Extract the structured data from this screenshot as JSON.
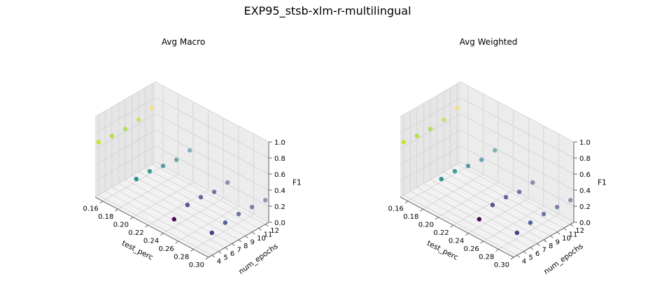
{
  "figure": {
    "suptitle": "EXP95_stsb-xlm-r-multilingual"
  },
  "chart_data": [
    {
      "type": "scatter3d",
      "title": "Avg Macro",
      "xlabel": "test_perc",
      "ylabel": "num_epochs",
      "zlabel": "F1",
      "xlim": [
        0.15,
        0.3
      ],
      "ylim": [
        3.5,
        12.5
      ],
      "zlim": [
        0.0,
        1.0
      ],
      "xticks": [
        "0.16",
        "0.18",
        "0.20",
        "0.22",
        "0.24",
        "0.26",
        "0.28",
        "0.30"
      ],
      "yticks": [
        "4",
        "5",
        "6",
        "7",
        "8",
        "9",
        "10",
        "11",
        "12"
      ],
      "zticks": [
        "0.0",
        "0.2",
        "0.4",
        "0.6",
        "0.8",
        "1.0"
      ],
      "grid": true,
      "colormap": "viridis",
      "points": [
        {
          "x": 0.15,
          "y": 4,
          "z": 0.66
        },
        {
          "x": 0.15,
          "y": 6,
          "z": 0.64
        },
        {
          "x": 0.15,
          "y": 8,
          "z": 0.63
        },
        {
          "x": 0.15,
          "y": 10,
          "z": 0.65
        },
        {
          "x": 0.15,
          "y": 12,
          "z": 0.7
        },
        {
          "x": 0.2,
          "y": 4,
          "z": 0.45
        },
        {
          "x": 0.2,
          "y": 6,
          "z": 0.45
        },
        {
          "x": 0.2,
          "y": 8,
          "z": 0.42
        },
        {
          "x": 0.2,
          "y": 10,
          "z": 0.4
        },
        {
          "x": 0.2,
          "y": 12,
          "z": 0.42
        },
        {
          "x": 0.25,
          "y": 4,
          "z": 0.2
        },
        {
          "x": 0.25,
          "y": 6,
          "z": 0.28
        },
        {
          "x": 0.25,
          "y": 8,
          "z": 0.28
        },
        {
          "x": 0.25,
          "y": 10,
          "z": 0.25
        },
        {
          "x": 0.25,
          "y": 12,
          "z": 0.27
        },
        {
          "x": 0.3,
          "y": 4,
          "z": 0.28
        },
        {
          "x": 0.3,
          "y": 6,
          "z": 0.31
        },
        {
          "x": 0.3,
          "y": 8,
          "z": 0.32
        },
        {
          "x": 0.3,
          "y": 10,
          "z": 0.31
        },
        {
          "x": 0.3,
          "y": 12,
          "z": 0.3
        }
      ]
    },
    {
      "type": "scatter3d",
      "title": "Avg Weighted",
      "xlabel": "test_perc",
      "ylabel": "num_epochs",
      "zlabel": "F1",
      "xlim": [
        0.15,
        0.3
      ],
      "ylim": [
        3.5,
        12.5
      ],
      "zlim": [
        0.0,
        1.0
      ],
      "xticks": [
        "0.16",
        "0.18",
        "0.20",
        "0.22",
        "0.24",
        "0.26",
        "0.28",
        "0.30"
      ],
      "yticks": [
        "4",
        "5",
        "6",
        "7",
        "8",
        "9",
        "10",
        "11",
        "12"
      ],
      "zticks": [
        "0.0",
        "0.2",
        "0.4",
        "0.6",
        "0.8",
        "1.0"
      ],
      "grid": true,
      "colormap": "viridis",
      "points": [
        {
          "x": 0.15,
          "y": 4,
          "z": 0.66
        },
        {
          "x": 0.15,
          "y": 6,
          "z": 0.64
        },
        {
          "x": 0.15,
          "y": 8,
          "z": 0.63
        },
        {
          "x": 0.15,
          "y": 10,
          "z": 0.65
        },
        {
          "x": 0.15,
          "y": 12,
          "z": 0.7
        },
        {
          "x": 0.2,
          "y": 4,
          "z": 0.45
        },
        {
          "x": 0.2,
          "y": 6,
          "z": 0.45
        },
        {
          "x": 0.2,
          "y": 8,
          "z": 0.42
        },
        {
          "x": 0.2,
          "y": 10,
          "z": 0.4
        },
        {
          "x": 0.2,
          "y": 12,
          "z": 0.42
        },
        {
          "x": 0.25,
          "y": 4,
          "z": 0.2
        },
        {
          "x": 0.25,
          "y": 6,
          "z": 0.28
        },
        {
          "x": 0.25,
          "y": 8,
          "z": 0.28
        },
        {
          "x": 0.25,
          "y": 10,
          "z": 0.25
        },
        {
          "x": 0.25,
          "y": 12,
          "z": 0.27
        },
        {
          "x": 0.3,
          "y": 4,
          "z": 0.28
        },
        {
          "x": 0.3,
          "y": 6,
          "z": 0.31
        },
        {
          "x": 0.3,
          "y": 8,
          "z": 0.32
        },
        {
          "x": 0.3,
          "y": 10,
          "z": 0.31
        },
        {
          "x": 0.3,
          "y": 12,
          "z": 0.3
        }
      ]
    }
  ]
}
